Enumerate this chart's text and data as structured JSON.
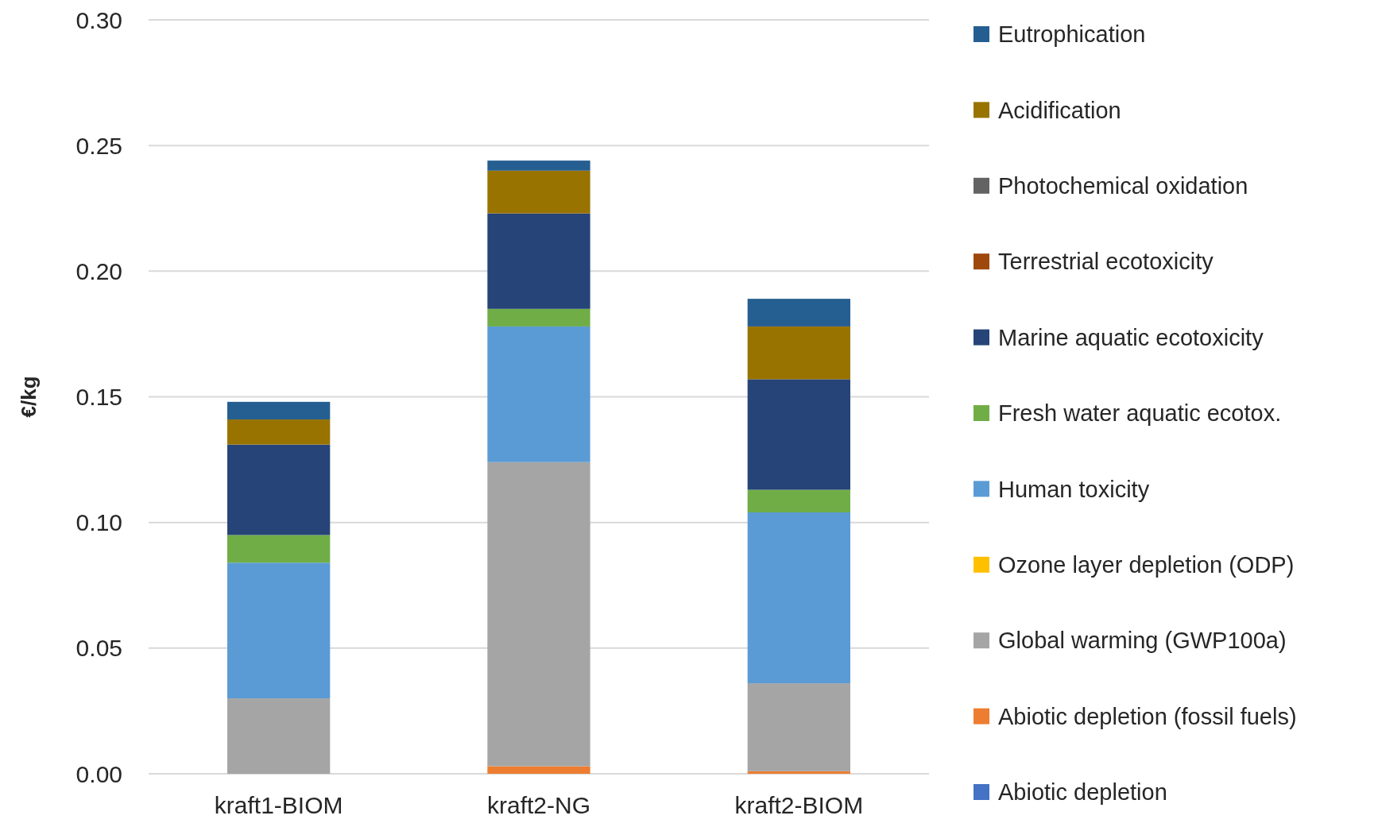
{
  "chart_data": {
    "type": "bar",
    "stacked": true,
    "ylabel": "€/kg",
    "categories": [
      "kraft1-BIOM",
      "kraft2-NG",
      "kraft2-BIOM"
    ],
    "series": [
      {
        "name": "Abiotic depletion",
        "color": "#4472c4",
        "values": [
          0,
          0,
          0
        ]
      },
      {
        "name": "Abiotic depletion (fossil fuels)",
        "color": "#ed7d31",
        "values": [
          0,
          0.003,
          0.001
        ]
      },
      {
        "name": "Global warming (GWP100a)",
        "color": "#a5a5a5",
        "values": [
          0.03,
          0.121,
          0.035
        ]
      },
      {
        "name": "Ozone layer depletion (ODP)",
        "color": "#ffc000",
        "values": [
          0,
          0,
          0
        ]
      },
      {
        "name": "Human toxicity",
        "color": "#5b9bd5",
        "values": [
          0.054,
          0.054,
          0.068
        ]
      },
      {
        "name": "Fresh water aquatic ecotox.",
        "color": "#70ad47",
        "values": [
          0.011,
          0.007,
          0.009
        ]
      },
      {
        "name": "Marine aquatic ecotoxicity",
        "color": "#264478",
        "values": [
          0.036,
          0.038,
          0.044
        ]
      },
      {
        "name": "Terrestrial ecotoxicity",
        "color": "#9e480e",
        "values": [
          0,
          0,
          0
        ]
      },
      {
        "name": "Photochemical oxidation",
        "color": "#636363",
        "values": [
          0,
          0,
          0
        ]
      },
      {
        "name": "Acidification",
        "color": "#997300",
        "values": [
          0.01,
          0.017,
          0.021
        ]
      },
      {
        "name": "Eutrophication",
        "color": "#255e91",
        "values": [
          0.007,
          0.004,
          0.011
        ]
      }
    ],
    "ylim": [
      0,
      0.3
    ],
    "yticks": [
      {
        "value": 0,
        "label": "0.00"
      },
      {
        "value": 0.05,
        "label": "0.05"
      },
      {
        "value": 0.1,
        "label": "0.10"
      },
      {
        "value": 0.15,
        "label": "0.15"
      },
      {
        "value": 0.2,
        "label": "0.20"
      },
      {
        "value": 0.25,
        "label": "0.25"
      },
      {
        "value": 0.3,
        "label": "0.30"
      }
    ],
    "grid": "y",
    "legend": "right"
  }
}
